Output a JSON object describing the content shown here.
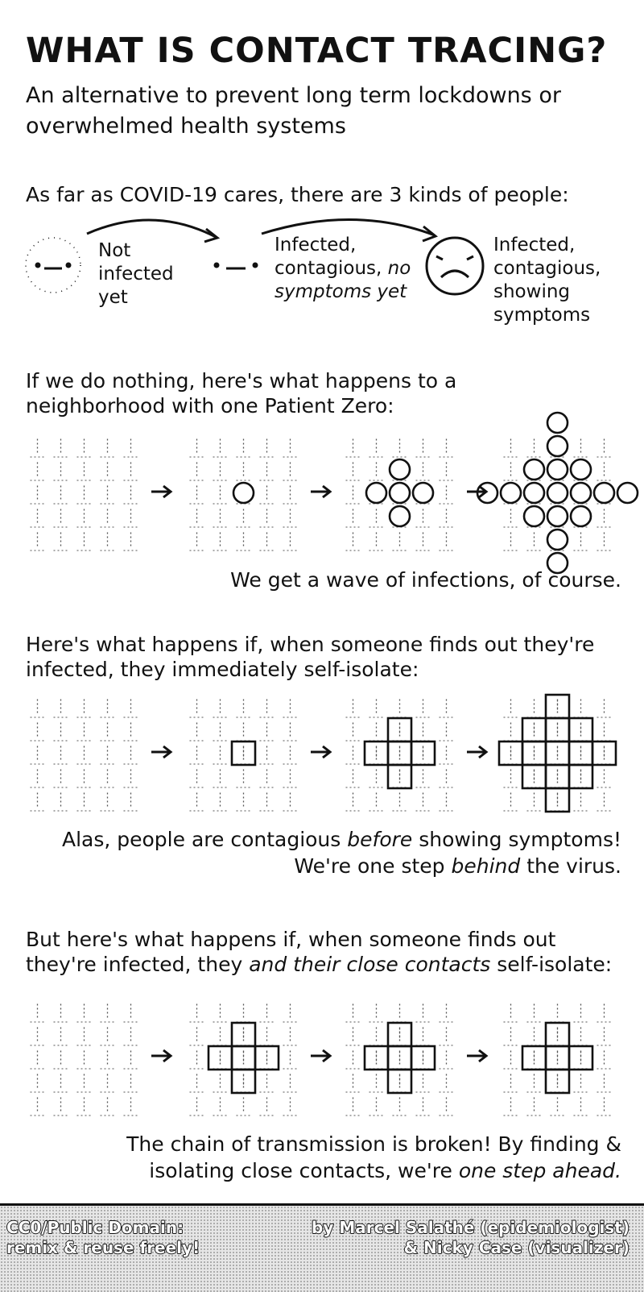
{
  "title": "WHAT IS CONTACT TRACING?",
  "subtitle": "An alternative to prevent long term lockdowns or overwhelmed health systems",
  "kinds": {
    "intro": "As far as COVID-19 cares, there are 3 kinds of people:",
    "not_infected": "Not infected yet",
    "contagious_a": "Infected, contagious,",
    "contagious_b": "no symptoms yet",
    "symptoms": "Infected, contagious, showing symptoms"
  },
  "scenario1": {
    "intro": "If we do nothing, here's what happens to a neighborhood with one Patient Zero:",
    "outcome": "We get a wave of infections, of course."
  },
  "scenario2": {
    "intro": "Here's what happens if, when someone finds out they're infected, they immediately self-isolate:",
    "outcome_a": "Alas, people are contagious",
    "outcome_b": "before",
    "outcome_c": "showing symptoms!",
    "outcome_d": "We're one step",
    "outcome_e": "behind",
    "outcome_f": "the virus."
  },
  "scenario3": {
    "intro_a": "But here's what happens if, when someone finds out they're infected, they",
    "intro_b": "and their close contacts",
    "intro_c": "self-isolate:",
    "outcome_a": "The chain of transmission is broken! By finding & isolating close contacts, we're",
    "outcome_b": "one step ahead."
  },
  "footer": {
    "license": "CC0/Public Domain:",
    "reuse": "remix & reuse freely!",
    "author": "by Marcel Salathé (epidemiologist)",
    "visualizer": "& Nicky Case (visualizer)"
  }
}
